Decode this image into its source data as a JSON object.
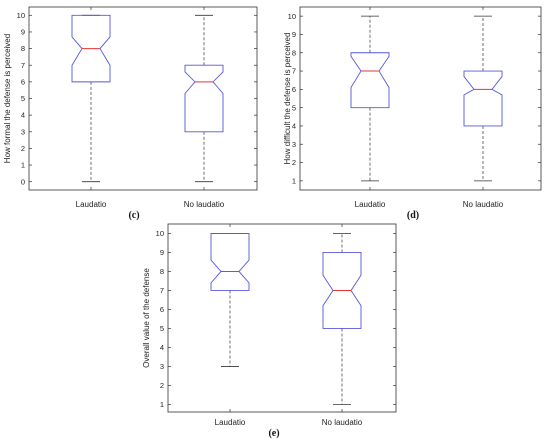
{
  "chart_data": [
    {
      "type": "box",
      "panel_label": "(c)",
      "ylabel": "How formal the defense is perceived",
      "ylim": [
        -0.5,
        10.5
      ],
      "yticks": [
        0,
        1,
        2,
        3,
        4,
        5,
        6,
        7,
        8,
        9,
        10
      ],
      "categories": [
        "Laudatio",
        "No laudatio"
      ],
      "boxes": [
        {
          "whisker_low": 0,
          "q1": 6,
          "notch_low": 7,
          "median": 8,
          "notch_high": 8.7,
          "q3": 10,
          "whisker_high": 10
        },
        {
          "whisker_low": 0,
          "q1": 3,
          "notch_low": 5.3,
          "median": 6,
          "notch_high": 6.6,
          "q3": 7,
          "whisker_high": 10
        }
      ]
    },
    {
      "type": "box",
      "panel_label": "(d)",
      "ylabel": "How difficult the defense is perceived",
      "ylim": [
        0.5,
        10.5
      ],
      "yticks": [
        1,
        2,
        3,
        4,
        5,
        6,
        7,
        8,
        9,
        10
      ],
      "categories": [
        "Laudatio",
        "No laudatio"
      ],
      "boxes": [
        {
          "whisker_low": 1,
          "q1": 5,
          "notch_low": 6.1,
          "median": 7,
          "notch_high": 7.8,
          "q3": 8,
          "whisker_high": 10
        },
        {
          "whisker_low": 1,
          "q1": 4,
          "notch_low": 5.7,
          "median": 6,
          "notch_high": 6.7,
          "q3": 7,
          "whisker_high": 10
        }
      ]
    },
    {
      "type": "box",
      "panel_label": "(e)",
      "ylabel": "Overall value of the defense",
      "ylim": [
        0.6,
        10.5
      ],
      "yticks": [
        1,
        2,
        3,
        4,
        5,
        6,
        7,
        8,
        9,
        10
      ],
      "categories": [
        "Laudatio",
        "No laudatio"
      ],
      "boxes": [
        {
          "whisker_low": 3,
          "q1": 7,
          "notch_low": 7.4,
          "median": 8,
          "notch_high": 8.6,
          "q3": 10,
          "whisker_high": 10
        },
        {
          "whisker_low": 1,
          "q1": 5,
          "notch_low": 6.2,
          "median": 7,
          "notch_high": 7.8,
          "q3": 9,
          "whisker_high": 10
        }
      ]
    }
  ],
  "colors": {
    "box": "#5555dd",
    "median": "#ee3333",
    "whisker": "#333333"
  }
}
